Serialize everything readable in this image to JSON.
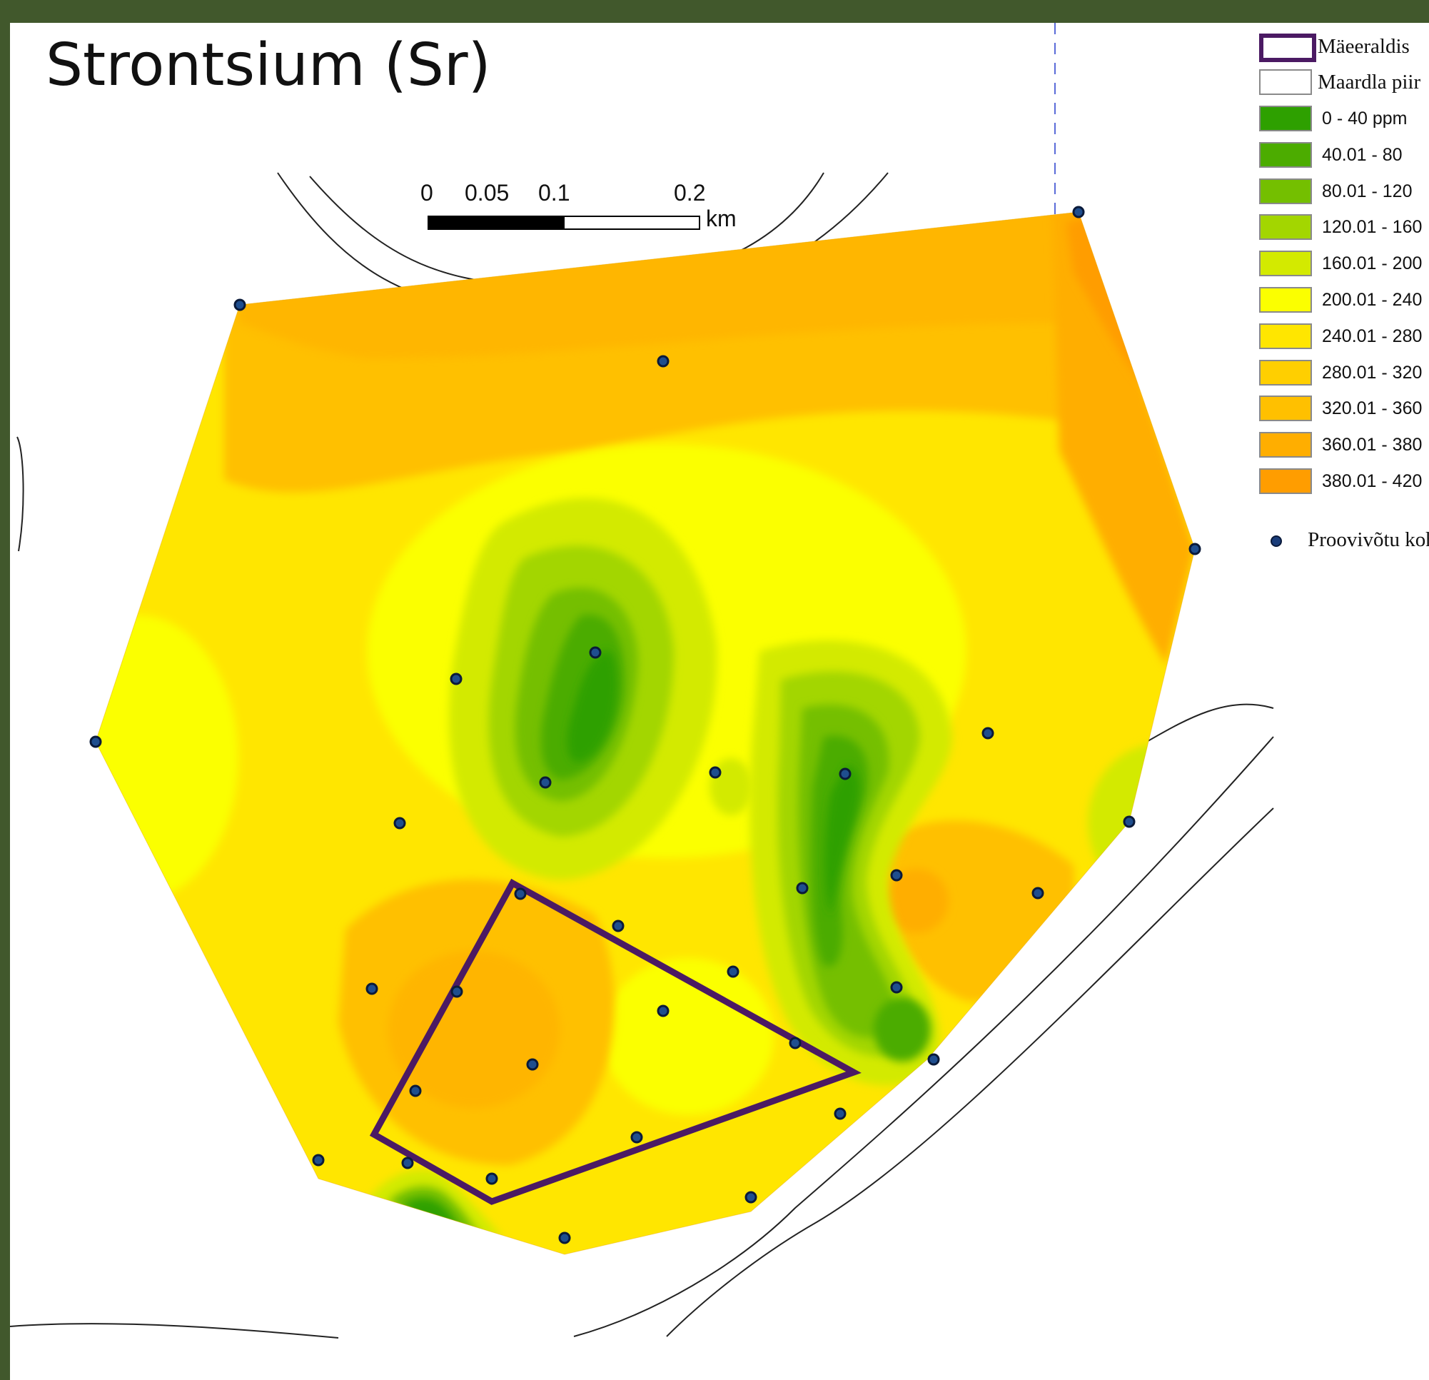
{
  "title": "Strontsium (Sr)",
  "scale": {
    "ticks": [
      "0",
      "0.05",
      "0.1",
      "0.2"
    ],
    "unit": "km"
  },
  "legend": {
    "boundary": {
      "label": "Mäeeraldis",
      "color": "#4b1a63"
    },
    "deposit": {
      "label": "Maardla piir",
      "color": "#ffffff"
    },
    "classes": [
      {
        "label": "0 - 40  ppm",
        "color": "#2ea000"
      },
      {
        "label": "40.01 - 80",
        "color": "#4cac00"
      },
      {
        "label": "80.01 - 120",
        "color": "#74bf00"
      },
      {
        "label": "120.01 - 160",
        "color": "#a3d600"
      },
      {
        "label": "160.01 - 200",
        "color": "#d3ea00"
      },
      {
        "label": "200.01 - 240",
        "color": "#fbff00"
      },
      {
        "label": "240.01 - 280",
        "color": "#ffe600"
      },
      {
        "label": "280.01 - 320",
        "color": "#ffcf00"
      },
      {
        "label": "320.01 - 360",
        "color": "#ffc000"
      },
      {
        "label": "360.01 - 380",
        "color": "#ffae00"
      },
      {
        "label": "380.01 - 420",
        "color": "#ff9d00"
      }
    ],
    "sample_point": {
      "label": "Proovivõtu koht",
      "color": "#1a3d7a"
    }
  }
}
